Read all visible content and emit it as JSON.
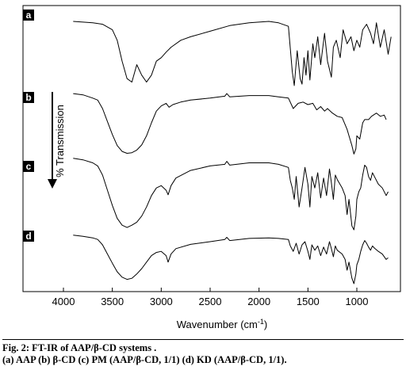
{
  "chart_data": {
    "type": "line",
    "title": "",
    "xlabel": "Wavenumber (cm⁻¹)",
    "ylabel": "% Transmission",
    "xlim": [
      4000,
      600
    ],
    "x_reversed": true,
    "xticks": [
      4000,
      3500,
      3000,
      2500,
      2000,
      1500,
      1000
    ],
    "xtick_labels": [
      "4000",
      "3500",
      "3000",
      "2500",
      "2000",
      "1500",
      "1000"
    ],
    "grid": false,
    "series": [
      {
        "name": "a",
        "points": [
          [
            3900,
            92
          ],
          [
            3700,
            90
          ],
          [
            3600,
            88
          ],
          [
            3500,
            80
          ],
          [
            3450,
            65
          ],
          [
            3400,
            35
          ],
          [
            3350,
            10
          ],
          [
            3300,
            5
          ],
          [
            3250,
            30
          ],
          [
            3200,
            15
          ],
          [
            3150,
            5
          ],
          [
            3100,
            15
          ],
          [
            3050,
            35
          ],
          [
            3000,
            40
          ],
          [
            2950,
            48
          ],
          [
            2900,
            55
          ],
          [
            2800,
            65
          ],
          [
            2700,
            70
          ],
          [
            2500,
            78
          ],
          [
            2300,
            86
          ],
          [
            2100,
            90
          ],
          [
            1900,
            92
          ],
          [
            1800,
            90
          ],
          [
            1700,
            85
          ],
          [
            1660,
            20
          ],
          [
            1640,
            0
          ],
          [
            1610,
            50
          ],
          [
            1580,
            10
          ],
          [
            1560,
            2
          ],
          [
            1540,
            40
          ],
          [
            1520,
            15
          ],
          [
            1500,
            50
          ],
          [
            1480,
            8
          ],
          [
            1450,
            60
          ],
          [
            1430,
            40
          ],
          [
            1400,
            70
          ],
          [
            1370,
            30
          ],
          [
            1330,
            75
          ],
          [
            1300,
            35
          ],
          [
            1260,
            12
          ],
          [
            1240,
            55
          ],
          [
            1210,
            65
          ],
          [
            1170,
            40
          ],
          [
            1140,
            80
          ],
          [
            1100,
            60
          ],
          [
            1060,
            70
          ],
          [
            1030,
            50
          ],
          [
            1000,
            65
          ],
          [
            970,
            55
          ],
          [
            940,
            80
          ],
          [
            900,
            88
          ],
          [
            860,
            75
          ],
          [
            830,
            60
          ],
          [
            800,
            90
          ],
          [
            760,
            55
          ],
          [
            720,
            80
          ],
          [
            680,
            45
          ],
          [
            650,
            70
          ]
        ]
      },
      {
        "name": "b",
        "points": [
          [
            3900,
            95
          ],
          [
            3800,
            93
          ],
          [
            3700,
            88
          ],
          [
            3650,
            85
          ],
          [
            3600,
            72
          ],
          [
            3550,
            52
          ],
          [
            3500,
            32
          ],
          [
            3450,
            15
          ],
          [
            3400,
            6
          ],
          [
            3350,
            3
          ],
          [
            3300,
            4
          ],
          [
            3250,
            8
          ],
          [
            3200,
            16
          ],
          [
            3150,
            30
          ],
          [
            3100,
            50
          ],
          [
            3050,
            68
          ],
          [
            3000,
            76
          ],
          [
            2950,
            80
          ],
          [
            2920,
            74
          ],
          [
            2880,
            78
          ],
          [
            2800,
            82
          ],
          [
            2700,
            85
          ],
          [
            2500,
            88
          ],
          [
            2350,
            91
          ],
          [
            2330,
            95
          ],
          [
            2300,
            90
          ],
          [
            2100,
            92
          ],
          [
            1900,
            92
          ],
          [
            1800,
            90
          ],
          [
            1700,
            88
          ],
          [
            1650,
            72
          ],
          [
            1600,
            80
          ],
          [
            1550,
            82
          ],
          [
            1500,
            78
          ],
          [
            1450,
            80
          ],
          [
            1410,
            70
          ],
          [
            1370,
            75
          ],
          [
            1330,
            68
          ],
          [
            1300,
            72
          ],
          [
            1250,
            65
          ],
          [
            1200,
            60
          ],
          [
            1150,
            58
          ],
          [
            1100,
            40
          ],
          [
            1080,
            30
          ],
          [
            1050,
            15
          ],
          [
            1030,
            2
          ],
          [
            1010,
            10
          ],
          [
            1000,
            30
          ],
          [
            970,
            25
          ],
          [
            940,
            50
          ],
          [
            920,
            55
          ],
          [
            880,
            55
          ],
          [
            850,
            60
          ],
          [
            800,
            65
          ],
          [
            760,
            60
          ],
          [
            720,
            62
          ],
          [
            700,
            55
          ]
        ]
      },
      {
        "name": "c",
        "points": [
          [
            3900,
            94
          ],
          [
            3800,
            92
          ],
          [
            3700,
            88
          ],
          [
            3650,
            84
          ],
          [
            3600,
            72
          ],
          [
            3550,
            52
          ],
          [
            3500,
            32
          ],
          [
            3450,
            15
          ],
          [
            3400,
            6
          ],
          [
            3350,
            3
          ],
          [
            3300,
            6
          ],
          [
            3250,
            10
          ],
          [
            3200,
            18
          ],
          [
            3150,
            30
          ],
          [
            3100,
            45
          ],
          [
            3050,
            55
          ],
          [
            3000,
            58
          ],
          [
            2950,
            52
          ],
          [
            2930,
            46
          ],
          [
            2900,
            58
          ],
          [
            2850,
            68
          ],
          [
            2700,
            78
          ],
          [
            2500,
            84
          ],
          [
            2350,
            86
          ],
          [
            2330,
            90
          ],
          [
            2300,
            85
          ],
          [
            2100,
            88
          ],
          [
            1900,
            88
          ],
          [
            1800,
            86
          ],
          [
            1700,
            82
          ],
          [
            1680,
            65
          ],
          [
            1660,
            55
          ],
          [
            1640,
            40
          ],
          [
            1620,
            70
          ],
          [
            1590,
            30
          ],
          [
            1560,
            55
          ],
          [
            1530,
            82
          ],
          [
            1500,
            60
          ],
          [
            1480,
            30
          ],
          [
            1460,
            70
          ],
          [
            1430,
            55
          ],
          [
            1400,
            75
          ],
          [
            1370,
            42
          ],
          [
            1340,
            68
          ],
          [
            1310,
            45
          ],
          [
            1280,
            80
          ],
          [
            1260,
            62
          ],
          [
            1240,
            40
          ],
          [
            1220,
            72
          ],
          [
            1200,
            66
          ],
          [
            1150,
            55
          ],
          [
            1120,
            45
          ],
          [
            1100,
            20
          ],
          [
            1080,
            40
          ],
          [
            1050,
            5
          ],
          [
            1030,
            0
          ],
          [
            1010,
            18
          ],
          [
            1000,
            40
          ],
          [
            980,
            50
          ],
          [
            960,
            55
          ],
          [
            940,
            72
          ],
          [
            920,
            85
          ],
          [
            900,
            82
          ],
          [
            880,
            70
          ],
          [
            860,
            65
          ],
          [
            840,
            75
          ],
          [
            820,
            70
          ],
          [
            780,
            60
          ],
          [
            740,
            55
          ],
          [
            700,
            45
          ],
          [
            680,
            50
          ]
        ]
      },
      {
        "name": "d",
        "points": [
          [
            3900,
            90
          ],
          [
            3800,
            88
          ],
          [
            3700,
            85
          ],
          [
            3650,
            82
          ],
          [
            3600,
            72
          ],
          [
            3550,
            55
          ],
          [
            3500,
            38
          ],
          [
            3450,
            22
          ],
          [
            3400,
            12
          ],
          [
            3350,
            8
          ],
          [
            3300,
            10
          ],
          [
            3250,
            18
          ],
          [
            3200,
            28
          ],
          [
            3150,
            40
          ],
          [
            3100,
            52
          ],
          [
            3050,
            58
          ],
          [
            3000,
            60
          ],
          [
            2950,
            52
          ],
          [
            2930,
            40
          ],
          [
            2900,
            55
          ],
          [
            2850,
            65
          ],
          [
            2700,
            73
          ],
          [
            2500,
            78
          ],
          [
            2350,
            82
          ],
          [
            2330,
            86
          ],
          [
            2300,
            80
          ],
          [
            2100,
            84
          ],
          [
            1900,
            85
          ],
          [
            1800,
            84
          ],
          [
            1700,
            82
          ],
          [
            1680,
            70
          ],
          [
            1650,
            60
          ],
          [
            1620,
            75
          ],
          [
            1590,
            55
          ],
          [
            1560,
            72
          ],
          [
            1530,
            78
          ],
          [
            1500,
            60
          ],
          [
            1480,
            45
          ],
          [
            1460,
            72
          ],
          [
            1430,
            62
          ],
          [
            1400,
            70
          ],
          [
            1370,
            52
          ],
          [
            1340,
            68
          ],
          [
            1310,
            55
          ],
          [
            1280,
            78
          ],
          [
            1260,
            65
          ],
          [
            1240,
            50
          ],
          [
            1220,
            70
          ],
          [
            1200,
            62
          ],
          [
            1150,
            55
          ],
          [
            1120,
            45
          ],
          [
            1100,
            25
          ],
          [
            1080,
            40
          ],
          [
            1050,
            10
          ],
          [
            1030,
            0
          ],
          [
            1010,
            18
          ],
          [
            1000,
            35
          ],
          [
            980,
            45
          ],
          [
            960,
            60
          ],
          [
            940,
            72
          ],
          [
            920,
            80
          ],
          [
            900,
            75
          ],
          [
            880,
            68
          ],
          [
            860,
            62
          ],
          [
            840,
            70
          ],
          [
            820,
            66
          ],
          [
            780,
            60
          ],
          [
            740,
            55
          ],
          [
            700,
            45
          ],
          [
            680,
            48
          ]
        ]
      }
    ]
  },
  "figure": {
    "tag_a": "a",
    "tag_b": "b",
    "tag_c": "c",
    "tag_d": "d",
    "ylabel": "% Transmission",
    "xlabel_main": "Wavenumber (cm",
    "xlabel_sup": "-1",
    "xlabel_close": ")"
  },
  "caption": {
    "line1": "Fig. 2: FT-IR of AAP/β-CD systems .",
    "line2": "(a) AAP (b) β-CD (c) PM (AAP/β-CD, 1/1) (d) KD (AAP/β-CD, 1/1)."
  }
}
